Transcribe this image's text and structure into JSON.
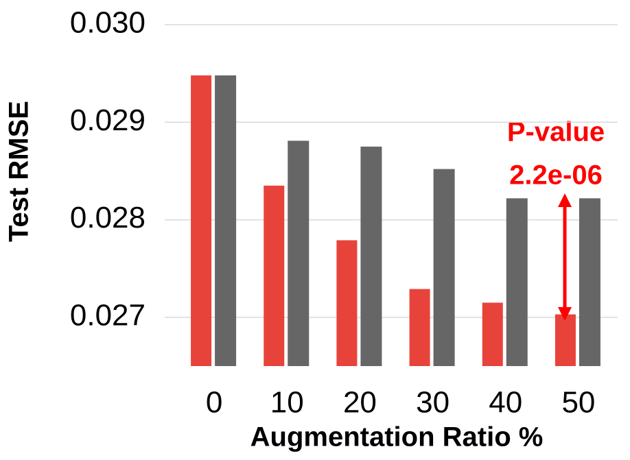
{
  "chart_data": {
    "type": "bar",
    "x_label": "Augmentation Ratio %",
    "y_label": "Test RMSE",
    "categories": [
      "0",
      "10",
      "20",
      "30",
      "40",
      "50"
    ],
    "series": [
      {
        "color": "#e8433a",
        "values": [
          0.02948,
          0.02835,
          0.02779,
          0.02729,
          0.02715,
          0.02703
        ]
      },
      {
        "color": "#666666",
        "values": [
          0.02948,
          0.02881,
          0.02875,
          0.02852,
          0.02822,
          0.02822
        ]
      }
    ],
    "ylim": [
      0.0265,
      0.03
    ],
    "yticks": [
      0.027,
      0.028,
      0.029,
      {
        "value": 0.03,
        "label": "0.030"
      }
    ],
    "grid": true,
    "annotations": [
      "P-value",
      "2.2e-06"
    ]
  }
}
